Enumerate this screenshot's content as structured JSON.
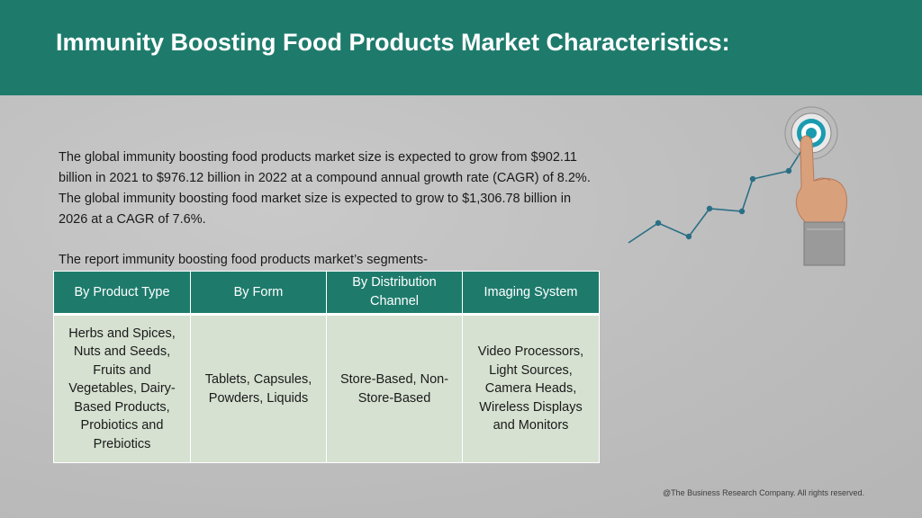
{
  "header": {
    "title": "Immunity Boosting Food Products Market Characteristics:"
  },
  "intro": {
    "paragraph": "The global immunity boosting food products market size is expected to grow from $902.11 billion in 2021 to $976.12 billion in 2022 at a compound annual growth rate (CAGR) of 8.2%. The global immunity boosting food market size is expected to grow to $1,306.78 billion in 2026 at a CAGR of 7.6%.",
    "segments_label": "The report immunity boosting food products market’s segments-"
  },
  "table": {
    "headers": [
      "By Product Type",
      "By Form",
      "By Distribution Channel",
      "Imaging System"
    ],
    "cells": [
      "Herbs and Spices, Nuts and Seeds, Fruits and Vegetables, Dairy-Based Products, Probiotics and Prebiotics",
      "Tablets, Capsules, Powders, Liquids",
      "Store-Based, Non-Store-Based",
      "Video Processors, Light Sources, Camera Heads, Wireless Displays and Monitors"
    ]
  },
  "illustration": {
    "icons": [
      "growth-line-icon",
      "target-icon",
      "pointing-hand-icon"
    ],
    "colors": {
      "line": "#2a6f86",
      "target": "#1a9bb0"
    }
  },
  "footer": {
    "copyright": "@The Business Research Company. All rights reserved."
  },
  "colors": {
    "accent": "#1e7b6c",
    "cell_background": "#d6e1d1",
    "page_background": "#bdbdbd"
  }
}
